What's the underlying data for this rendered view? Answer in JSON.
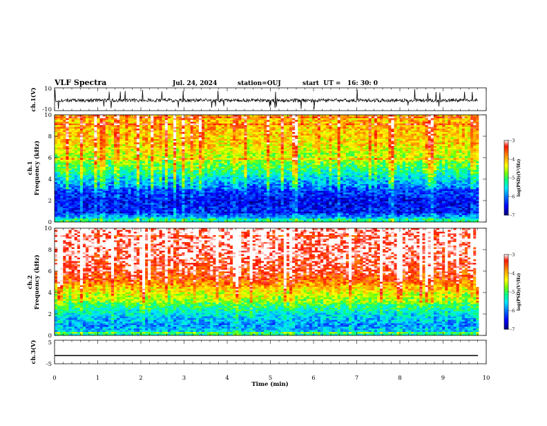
{
  "header": {
    "title": "VLF Spectra",
    "date": "Jul. 24, 2024",
    "station": "station=OUJ",
    "start": "start  UT =   16: 30: 0"
  },
  "colors": {
    "background": "#ffffff",
    "axes": "#000000",
    "trace": "#000000",
    "colormap": [
      "#000080",
      "#0000ff",
      "#0080ff",
      "#00ffff",
      "#00ff80",
      "#80ff00",
      "#ffff00",
      "#ff8000",
      "#ff0000",
      "#ffffff"
    ]
  },
  "chart_data": [
    {
      "type": "line",
      "name": "ch1-waveform",
      "ylabel": "ch.1(V)",
      "ylim": [
        -10,
        10
      ],
      "yticks": [
        "10",
        "-10"
      ],
      "xlim": [
        0,
        10
      ],
      "baseline": -1,
      "noise_amplitude": 1.5,
      "spike_amplitude": [
        -9,
        9
      ]
    },
    {
      "type": "heatmap",
      "name": "ch1-spectrogram",
      "ylabel": "ch.1\nFrequency (kHz)",
      "ylim": [
        0,
        10
      ],
      "yticks": [
        "0",
        "2",
        "4",
        "6",
        "8",
        "10"
      ],
      "xlim": [
        0,
        9.83
      ],
      "colorbar": {
        "label": "log(PSD)(V²/Hz)",
        "range": [
          -7,
          -3
        ],
        "ticks": [
          "-3",
          "-4",
          "-5",
          "-6",
          "-7"
        ]
      },
      "profile": [
        {
          "f": 0.0,
          "v": -5.2
        },
        {
          "f": 0.5,
          "v": -6.0
        },
        {
          "f": 1.0,
          "v": -6.5
        },
        {
          "f": 2.0,
          "v": -6.6
        },
        {
          "f": 3.0,
          "v": -6.3
        },
        {
          "f": 4.0,
          "v": -5.8
        },
        {
          "f": 5.0,
          "v": -5.2
        },
        {
          "f": 6.0,
          "v": -4.8
        },
        {
          "f": 7.0,
          "v": -4.5
        },
        {
          "f": 8.0,
          "v": -4.3
        },
        {
          "f": 10.0,
          "v": -4.2
        }
      ]
    },
    {
      "type": "heatmap",
      "name": "ch2-spectrogram",
      "ylabel": "ch.2\nFrequency (kHz)",
      "ylim": [
        0,
        10
      ],
      "yticks": [
        "0",
        "2",
        "4",
        "6",
        "8",
        "10"
      ],
      "xlim": [
        0,
        9.83
      ],
      "colorbar": {
        "label": "log(PSD)(V²/Hz)",
        "range": [
          -7,
          -3
        ],
        "ticks": [
          "-3",
          "-4",
          "-5",
          "-6",
          "-7"
        ]
      },
      "profile": [
        {
          "f": 0.0,
          "v": -5.3
        },
        {
          "f": 0.5,
          "v": -5.8
        },
        {
          "f": 1.0,
          "v": -6.0
        },
        {
          "f": 2.0,
          "v": -5.6
        },
        {
          "f": 3.0,
          "v": -5.0
        },
        {
          "f": 4.0,
          "v": -4.6
        },
        {
          "f": 5.0,
          "v": -3.9
        },
        {
          "f": 6.0,
          "v": -3.5
        },
        {
          "f": 8.0,
          "v": -3.3
        },
        {
          "f": 10.0,
          "v": -3.2
        }
      ]
    },
    {
      "type": "line",
      "name": "ch3-waveform",
      "ylabel": "ch.3(V)",
      "ylim": [
        -5,
        5
      ],
      "yticks": [
        "5",
        "-5"
      ],
      "xlim": [
        0,
        10
      ],
      "baseline": -1.5
    }
  ],
  "xaxis": {
    "label": "Time (min)",
    "range": [
      0,
      10
    ],
    "ticks": [
      "0",
      "1",
      "2",
      "3",
      "4",
      "5",
      "6",
      "7",
      "8",
      "9",
      "10"
    ]
  }
}
